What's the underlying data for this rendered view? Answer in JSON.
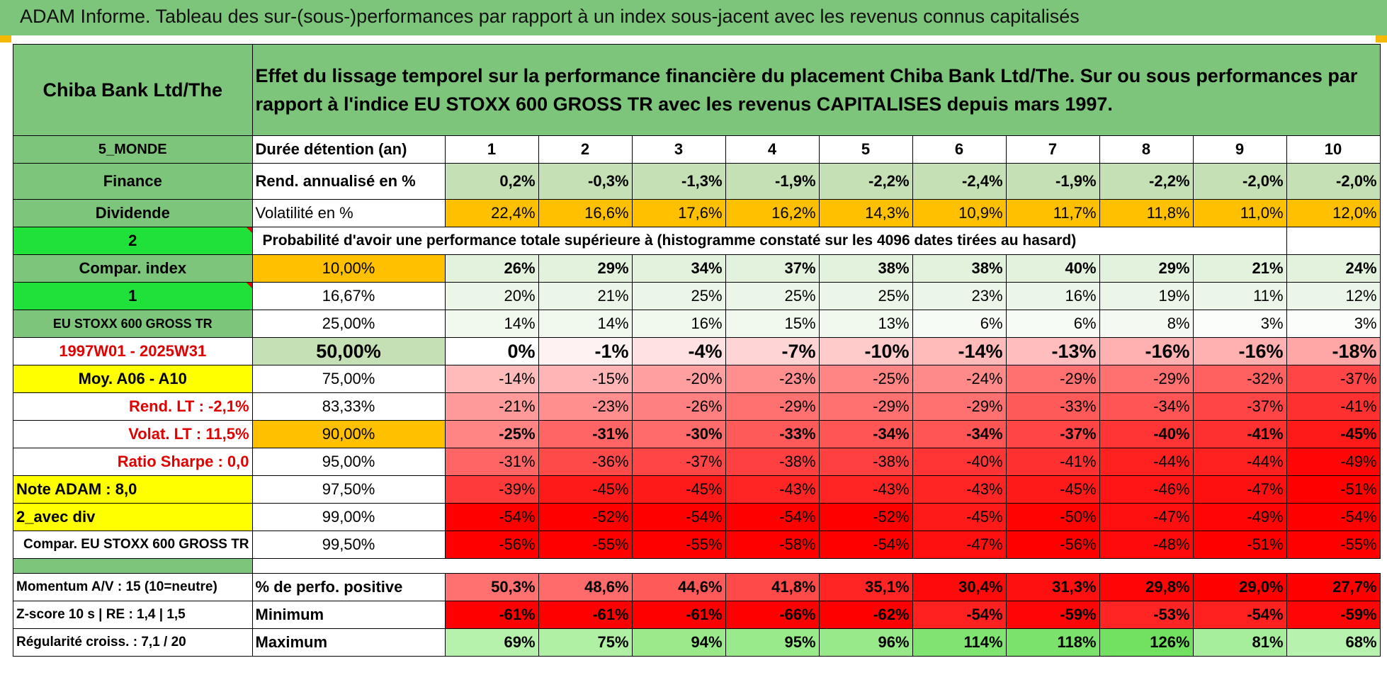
{
  "header": {
    "title": "ADAM Informe. Tableau des sur-(sous-)performances par rapport à un index sous-jacent avec les revenus connus capitalisés"
  },
  "info": {
    "company": "Chiba Bank Ltd/The",
    "description": "Effet du lissage temporel sur la performance financière du placement Chiba Bank Ltd/The. Sur ou sous performances par rapport à l'indice EU STOXX 600 GROSS TR avec les revenus CAPITALISES depuis mars 1997.",
    "region": "5_MONDE",
    "sector": "Finance",
    "type": "Dividende",
    "selector_a": "2",
    "compar_label": "Compar. index",
    "selector_b": "1",
    "index_name": "EU STOXX 600 GROSS TR",
    "period": "1997W01 - 2025W31",
    "moy": "Moy. A06 - A10",
    "rend_lt": "Rend. LT :    -2,1%",
    "volat_lt": "Volat. LT :    11,5%",
    "sharpe": "Ratio Sharpe :     0,0",
    "note": "Note ADAM : 8,0",
    "avec_div": "2_avec div",
    "compar_index_full": "Compar. EU STOXX 600 GROSS TR",
    "momentum": "Momentum A/V : 15 (10=neutre)",
    "zscore": "Z-score 10 s | RE : 1,4 | 1,5",
    "regularite": "Régularité croiss. : 7,1 / 20"
  },
  "table": {
    "duration_label": "Durée détention (an)",
    "years": [
      "1",
      "2",
      "3",
      "4",
      "5",
      "6",
      "7",
      "8",
      "9",
      "10"
    ],
    "rend_label": "Rend. annualisé en %",
    "rend": [
      "0,2%",
      "-0,3%",
      "-1,3%",
      "-1,9%",
      "-2,2%",
      "-2,4%",
      "-1,9%",
      "-2,2%",
      "-2,0%",
      "-2,0%"
    ],
    "vol_label": "Volatilité en %",
    "vol": [
      "22,4%",
      "16,6%",
      "17,6%",
      "16,2%",
      "14,3%",
      "10,9%",
      "11,7%",
      "11,8%",
      "11,0%",
      "12,0%"
    ],
    "prob_label": "Probabilité d'avoir une performance totale supérieure à (histogramme constaté sur les 4096 dates tirées au hasard)",
    "pct_rows": [
      {
        "pct": "10,00%",
        "values": [
          "26%",
          "29%",
          "34%",
          "37%",
          "38%",
          "38%",
          "40%",
          "29%",
          "21%",
          "24%"
        ],
        "colors": [
          "#e2f2dc",
          "#e2f2dc",
          "#e2f2dc",
          "#e2f2dc",
          "#e2f2dc",
          "#e2f2dc",
          "#e2f2dc",
          "#e2f2dc",
          "#e2f2dc",
          "#e2f2dc"
        ]
      },
      {
        "pct": "16,67%",
        "values": [
          "20%",
          "21%",
          "25%",
          "25%",
          "25%",
          "23%",
          "16%",
          "19%",
          "11%",
          "12%"
        ],
        "colors": [
          "#ecf6e8",
          "#ecf6e8",
          "#ecf6e8",
          "#ecf6e8",
          "#ecf6e8",
          "#ecf6e8",
          "#ecf6e8",
          "#ecf6e8",
          "#ecf6e8",
          "#ecf6e8"
        ]
      },
      {
        "pct": "25,00%",
        "values": [
          "14%",
          "14%",
          "16%",
          "15%",
          "13%",
          "6%",
          "6%",
          "8%",
          "3%",
          "3%"
        ],
        "colors": [
          "#f1f8ee",
          "#f1f8ee",
          "#f1f8ee",
          "#f1f8ee",
          "#f1f8ee",
          "#f7fbf5",
          "#f7fbf5",
          "#f4f9f2",
          "#fbfdfa",
          "#fbfdfa"
        ]
      },
      {
        "pct": "50,00%",
        "values": [
          "0%",
          "-1%",
          "-4%",
          "-7%",
          "-10%",
          "-14%",
          "-13%",
          "-16%",
          "-16%",
          "-18%"
        ],
        "colors": [
          "#ffffff",
          "#fff2f2",
          "#ffe1e1",
          "#ffd4d4",
          "#ffcaca",
          "#ffbaba",
          "#ffbdbd",
          "#ffb0b0",
          "#ffb0b0",
          "#ffa6a6"
        ]
      },
      {
        "pct": "75,00%",
        "values": [
          "-14%",
          "-15%",
          "-20%",
          "-23%",
          "-25%",
          "-24%",
          "-29%",
          "-29%",
          "-32%",
          "-37%"
        ],
        "colors": [
          "#ffbaba",
          "#ffb5b5",
          "#ff9f9f",
          "#ff8f8f",
          "#ff8585",
          "#ff8a8a",
          "#ff7070",
          "#ff7070",
          "#ff6060",
          "#ff4545"
        ]
      },
      {
        "pct": "83,33%",
        "values": [
          "-21%",
          "-23%",
          "-26%",
          "-29%",
          "-29%",
          "-29%",
          "-33%",
          "-34%",
          "-37%",
          "-41%"
        ],
        "colors": [
          "#ff9a9a",
          "#ff8f8f",
          "#ff8080",
          "#ff7070",
          "#ff7070",
          "#ff7070",
          "#ff5a5a",
          "#ff5555",
          "#ff4545",
          "#ff3030"
        ]
      },
      {
        "pct": "90,00%",
        "values": [
          "-25%",
          "-31%",
          "-30%",
          "-33%",
          "-34%",
          "-34%",
          "-37%",
          "-40%",
          "-41%",
          "-45%"
        ],
        "colors": [
          "#ff8585",
          "#ff6565",
          "#ff6a6a",
          "#ff5a5a",
          "#ff5555",
          "#ff5555",
          "#ff4545",
          "#ff3535",
          "#ff3030",
          "#ff1a1a"
        ]
      },
      {
        "pct": "95,00%",
        "values": [
          "-31%",
          "-36%",
          "-37%",
          "-38%",
          "-38%",
          "-40%",
          "-41%",
          "-44%",
          "-44%",
          "-49%"
        ],
        "colors": [
          "#ff6565",
          "#ff4a4a",
          "#ff4545",
          "#ff4040",
          "#ff4040",
          "#ff3535",
          "#ff3030",
          "#ff2020",
          "#ff2020",
          "#ff0505"
        ]
      },
      {
        "pct": "97,50%",
        "values": [
          "-39%",
          "-45%",
          "-45%",
          "-43%",
          "-43%",
          "-43%",
          "-45%",
          "-46%",
          "-47%",
          "-51%"
        ],
        "colors": [
          "#ff3a3a",
          "#ff1a1a",
          "#ff1a1a",
          "#ff2525",
          "#ff2525",
          "#ff2525",
          "#ff1a1a",
          "#ff1515",
          "#ff1010",
          "#ff0000"
        ]
      },
      {
        "pct": "99,00%",
        "values": [
          "-54%",
          "-52%",
          "-54%",
          "-54%",
          "-52%",
          "-45%",
          "-50%",
          "-47%",
          "-49%",
          "-54%"
        ],
        "colors": [
          "#ff0000",
          "#ff0000",
          "#ff0000",
          "#ff0000",
          "#ff0000",
          "#ff1a1a",
          "#ff0202",
          "#ff1010",
          "#ff0505",
          "#ff0000"
        ]
      },
      {
        "pct": "99,50%",
        "values": [
          "-56%",
          "-55%",
          "-55%",
          "-58%",
          "-54%",
          "-47%",
          "-56%",
          "-48%",
          "-51%",
          "-55%"
        ],
        "colors": [
          "#ff0000",
          "#ff0000",
          "#ff0000",
          "#ff0000",
          "#ff0000",
          "#ff1010",
          "#ff0000",
          "#ff0a0a",
          "#ff0000",
          "#ff0000"
        ]
      }
    ],
    "pos_label": "% de perfo. positive",
    "pos": [
      "50,3%",
      "48,6%",
      "44,6%",
      "41,8%",
      "35,1%",
      "30,4%",
      "31,3%",
      "29,8%",
      "29,0%",
      "27,7%"
    ],
    "pos_colors": [
      "#ff7070",
      "#ff6a6a",
      "#ff5a5a",
      "#ff4a4a",
      "#ff2525",
      "#ff0a0a",
      "#ff1010",
      "#ff0505",
      "#ff0000",
      "#ff0000"
    ],
    "min_label": "Minimum",
    "min": [
      "-61%",
      "-61%",
      "-61%",
      "-66%",
      "-62%",
      "-54%",
      "-59%",
      "-53%",
      "-54%",
      "-59%"
    ],
    "min_colors": [
      "#ff0000",
      "#ff0000",
      "#ff0000",
      "#ff0000",
      "#ff0000",
      "#ff2020",
      "#ff0505",
      "#ff2525",
      "#ff2020",
      "#ff0505"
    ],
    "max_label": "Maximum",
    "max": [
      "69%",
      "75%",
      "94%",
      "95%",
      "96%",
      "114%",
      "118%",
      "126%",
      "81%",
      "68%"
    ],
    "max_colors": [
      "#b6f2ac",
      "#b0f0a5",
      "#9aea8c",
      "#99ea8b",
      "#98e98a",
      "#80e470",
      "#7be26b",
      "#72e060",
      "#a7ee9c",
      "#b7f2ae"
    ]
  },
  "colors": {
    "green_header": "#7dc57a",
    "light_green": "#c4e0b4",
    "bright_green": "#20e03a",
    "orange": "#ffc000",
    "yellow": "#ffff00",
    "red_text": "#e00000"
  }
}
